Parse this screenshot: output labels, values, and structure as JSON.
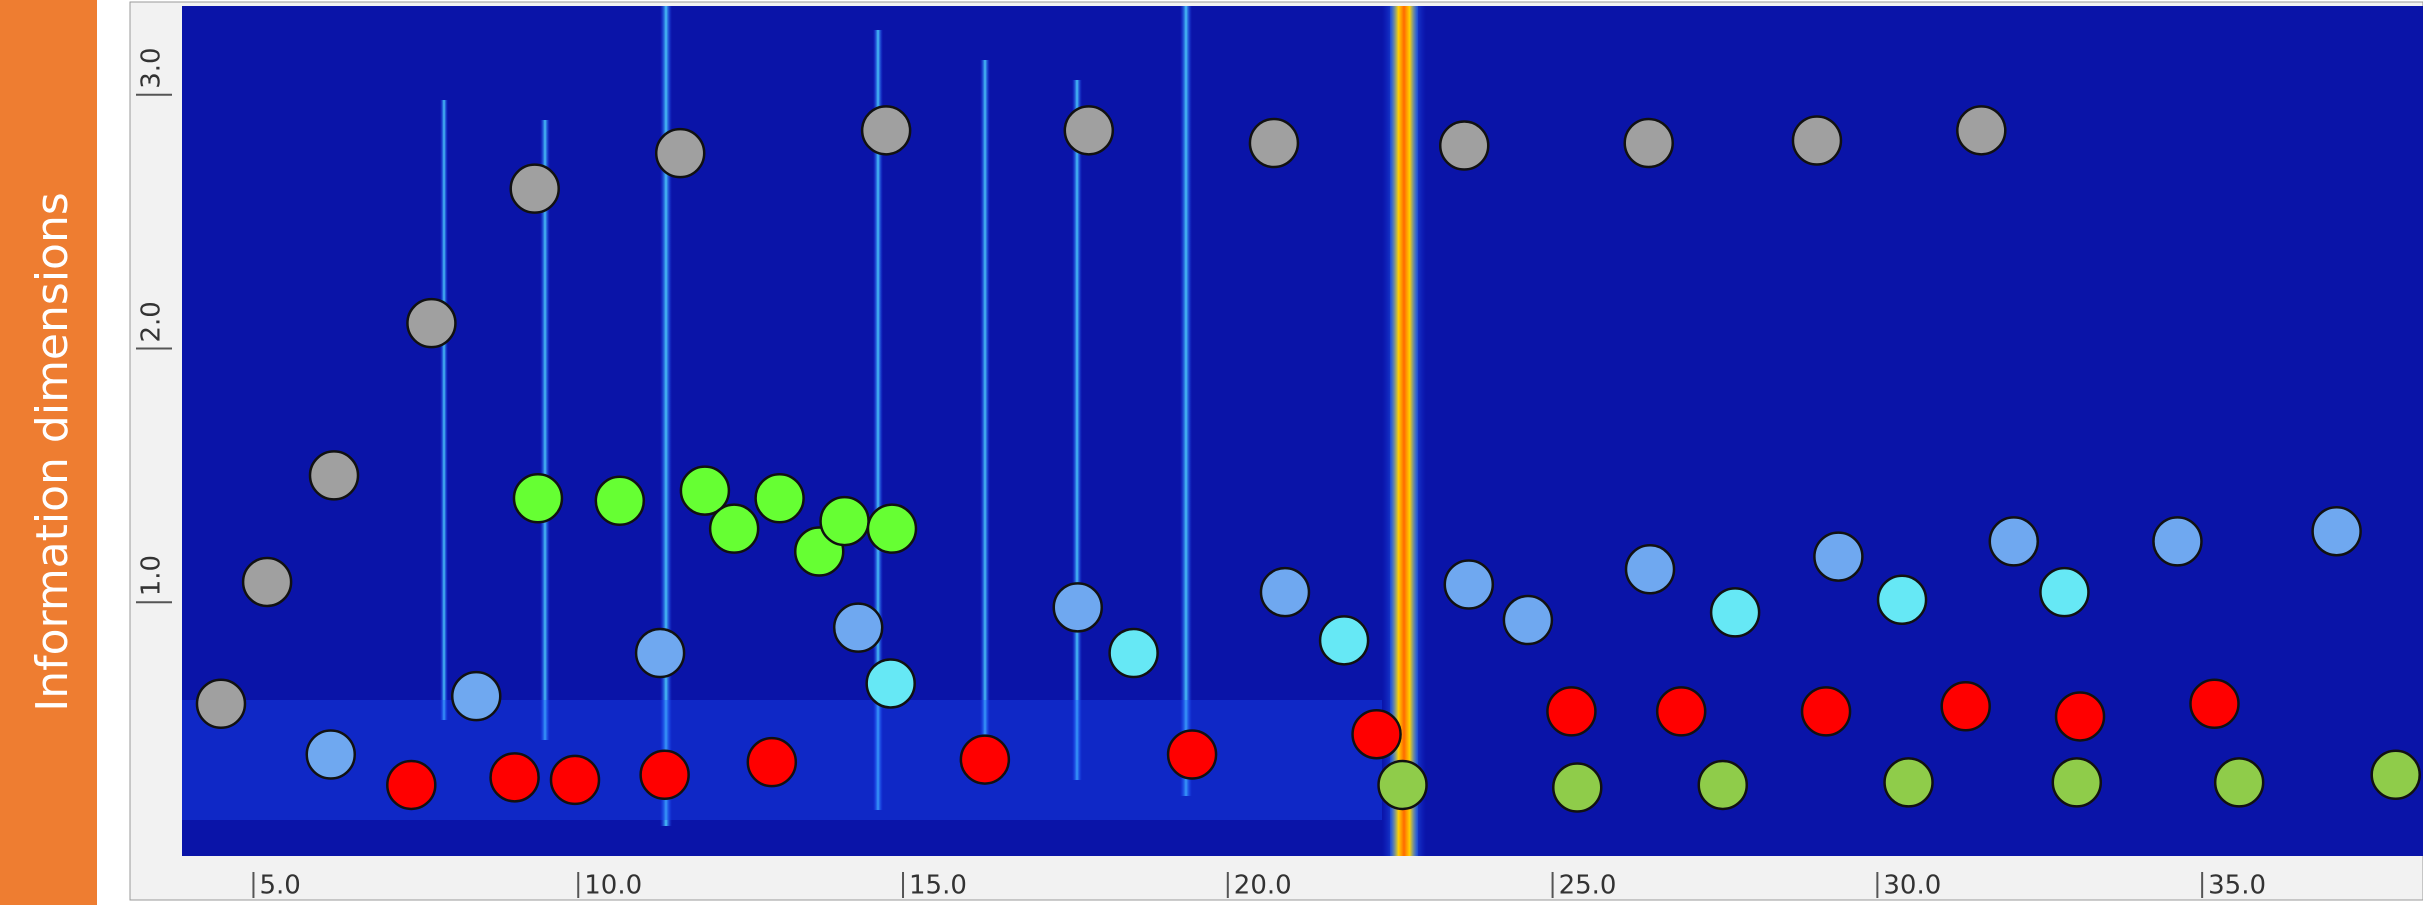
{
  "chart_data": {
    "type": "scatter",
    "ylabel": "Information dimensions",
    "xlim": [
      3.9,
      38.4
    ],
    "ylim": [
      0,
      3.35
    ],
    "xticks": [
      {
        "value": 5,
        "label": "5.0"
      },
      {
        "value": 10,
        "label": "10.0"
      },
      {
        "value": 15,
        "label": "15.0"
      },
      {
        "value": 20,
        "label": "20.0"
      },
      {
        "value": 25,
        "label": "25.0"
      },
      {
        "value": 30,
        "label": "30.0"
      },
      {
        "value": 35,
        "label": "35.0"
      }
    ],
    "yticks": [
      {
        "value": 1,
        "label": "1.0"
      },
      {
        "value": 2,
        "label": "2.0"
      },
      {
        "value": 3,
        "label": "3.0"
      }
    ],
    "series": [
      {
        "color": "#a0a0a0",
        "x": [
          4.5,
          5.21,
          6.24,
          7.74,
          9.33,
          11.57,
          14.74,
          17.86,
          20.71,
          23.64,
          26.48,
          29.07,
          31.6
        ],
        "values": [
          0.6,
          1.08,
          1.5,
          2.1,
          2.63,
          2.77,
          2.86,
          2.86,
          2.81,
          2.8,
          2.81,
          2.82,
          2.86
        ]
      },
      {
        "color": "#66ff33",
        "x": [
          9.38,
          10.64,
          11.95,
          12.4,
          13.1,
          13.71,
          14.1,
          14.83
        ],
        "values": [
          1.41,
          1.4,
          1.44,
          1.29,
          1.41,
          1.2,
          1.32,
          1.29
        ]
      },
      {
        "color": "#6fa8f0",
        "x": [
          6.19,
          8.43,
          11.26,
          14.31,
          17.69,
          20.88,
          23.71,
          24.62,
          26.5,
          29.4,
          32.1,
          34.62,
          37.07
        ],
        "values": [
          0.4,
          0.63,
          0.8,
          0.9,
          0.98,
          1.04,
          1.07,
          0.93,
          1.13,
          1.18,
          1.24,
          1.24,
          1.28
        ]
      },
      {
        "color": "#66e8f5",
        "x": [
          14.81,
          18.55,
          21.79,
          27.81,
          30.38,
          32.88
        ],
        "values": [
          0.68,
          0.8,
          0.85,
          0.96,
          1.01,
          1.04
        ]
      },
      {
        "color": "#ff0000",
        "x": [
          7.43,
          9.02,
          9.95,
          11.33,
          12.98,
          16.26,
          19.45,
          22.29,
          25.29,
          26.98,
          29.21,
          31.36,
          33.12,
          35.19
        ],
        "values": [
          0.28,
          0.31,
          0.3,
          0.32,
          0.37,
          0.38,
          0.4,
          0.48,
          0.57,
          0.57,
          0.57,
          0.59,
          0.55,
          0.6
        ]
      },
      {
        "color": "#8fcc4a",
        "x": [
          22.69,
          25.38,
          27.62,
          30.48,
          33.07,
          35.57,
          37.98
        ],
        "values": [
          0.28,
          0.27,
          0.28,
          0.29,
          0.29,
          0.29,
          0.32
        ]
      }
    ]
  }
}
